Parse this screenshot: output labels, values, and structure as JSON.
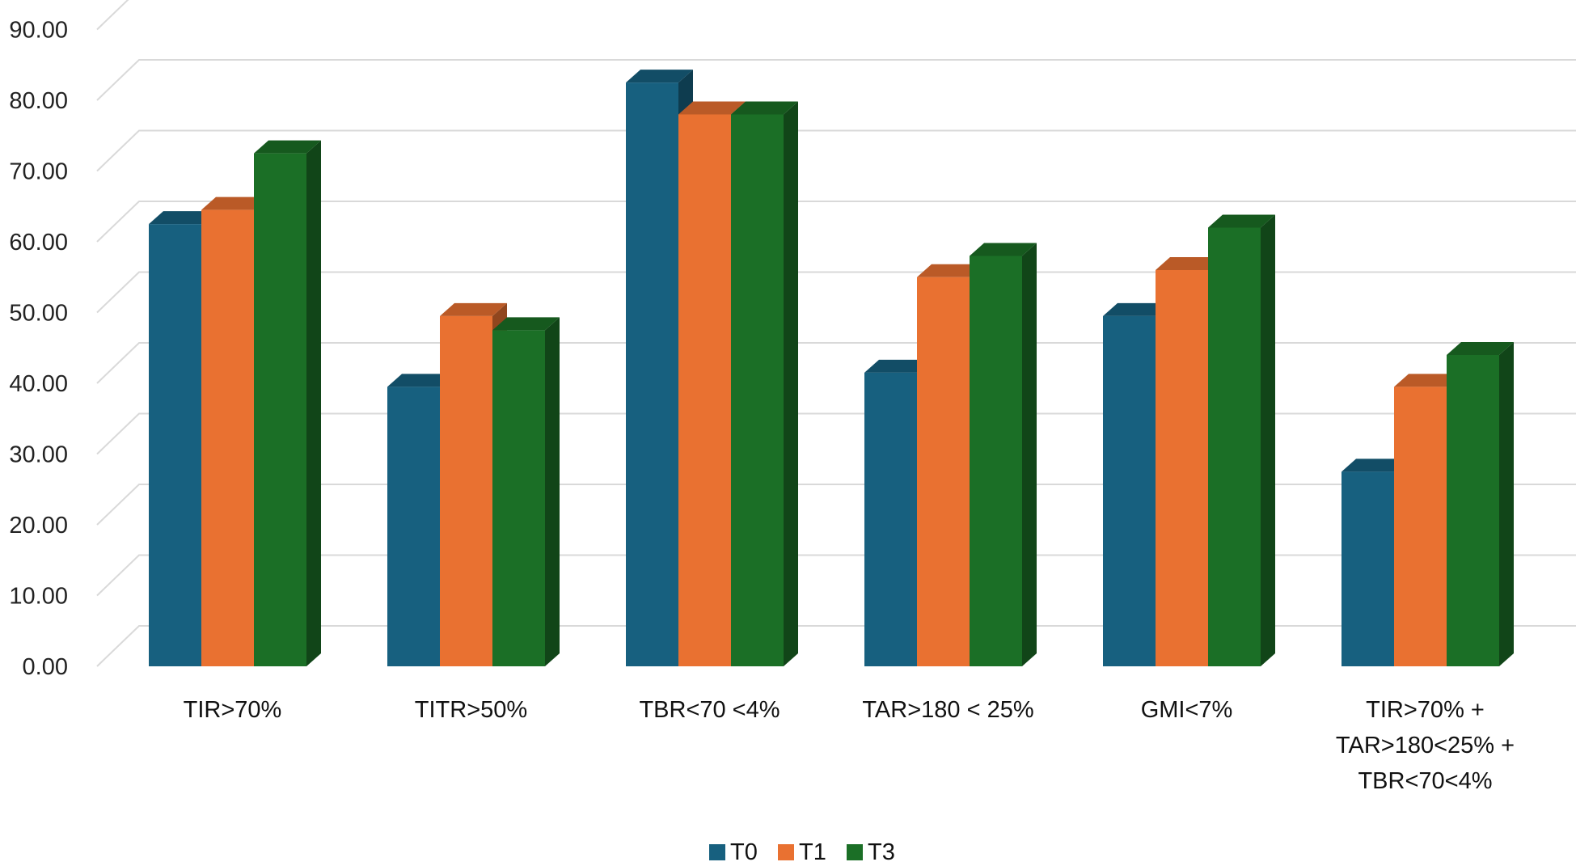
{
  "chart_data": {
    "type": "bar",
    "title": "",
    "xlabel": "",
    "ylabel": "",
    "ylim": [
      0,
      90
    ],
    "yticks": [
      "0.00",
      "10.00",
      "20.00",
      "30.00",
      "40.00",
      "50.00",
      "60.00",
      "70.00",
      "80.00",
      "90.00"
    ],
    "grid": true,
    "legend_position": "bottom",
    "categories": [
      [
        "TIR>70%"
      ],
      [
        "TITR>50%"
      ],
      [
        "TBR<70 <4%"
      ],
      [
        "TAR>180 < 25%"
      ],
      [
        "GMI<7%"
      ],
      [
        "TIR>70% +",
        "TAR>180<25% +",
        "TBR<70<4%"
      ]
    ],
    "series": [
      {
        "name": "T0",
        "color": "#17607f",
        "values": [
          62.5,
          39.5,
          82.5,
          41.5,
          49.5,
          27.5
        ]
      },
      {
        "name": "T1",
        "color": "#e97131",
        "values": [
          64.5,
          49.5,
          78.0,
          55.0,
          56.0,
          39.5
        ]
      },
      {
        "name": "T3",
        "color": "#1b6f26",
        "values": [
          72.5,
          47.5,
          78.0,
          58.0,
          62.0,
          44.0
        ]
      }
    ]
  }
}
